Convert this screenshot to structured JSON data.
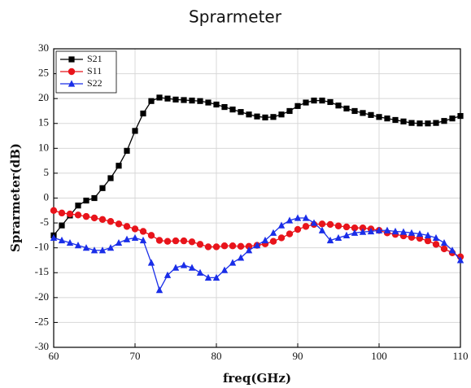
{
  "chart_data": {
    "type": "line",
    "title": "Sprarmeter",
    "x_label": "freq(GHz)",
    "y_label": "Sprarmeter(dB)",
    "x": [
      60,
      61,
      62,
      63,
      64,
      65,
      66,
      67,
      68,
      69,
      70,
      71,
      72,
      73,
      74,
      75,
      76,
      77,
      78,
      79,
      80,
      81,
      82,
      83,
      84,
      85,
      86,
      87,
      88,
      89,
      90,
      91,
      92,
      93,
      94,
      95,
      96,
      97,
      98,
      99,
      100,
      101,
      102,
      103,
      104,
      105,
      106,
      107,
      108,
      109,
      110
    ],
    "series": [
      {
        "name": "S21",
        "color": "#000000",
        "marker": "square",
        "values": [
          -7.5,
          -5.5,
          -3.5,
          -1.5,
          -0.5,
          0,
          2,
          4,
          6.5,
          9.5,
          13.5,
          17,
          19.5,
          20.2,
          20,
          19.8,
          19.7,
          19.6,
          19.5,
          19.2,
          18.8,
          18.3,
          17.8,
          17.3,
          16.8,
          16.4,
          16.2,
          16.3,
          16.8,
          17.5,
          18.5,
          19.2,
          19.6,
          19.6,
          19.3,
          18.6,
          18,
          17.5,
          17.1,
          16.7,
          16.3,
          16,
          15.7,
          15.4,
          15.1,
          15,
          15,
          15.1,
          15.5,
          16,
          16.5
        ]
      },
      {
        "name": "S11",
        "color": "#e8141b",
        "marker": "circle",
        "values": [
          -2.5,
          -3,
          -3.2,
          -3.4,
          -3.7,
          -4,
          -4.3,
          -4.7,
          -5.2,
          -5.7,
          -6.2,
          -6.7,
          -7.5,
          -8.5,
          -8.7,
          -8.6,
          -8.6,
          -8.8,
          -9.3,
          -9.8,
          -9.8,
          -9.6,
          -9.6,
          -9.7,
          -9.7,
          -9.5,
          -9.2,
          -8.7,
          -8,
          -7.2,
          -6.3,
          -5.7,
          -5.3,
          -5.2,
          -5.3,
          -5.6,
          -5.8,
          -6,
          -6,
          -6.2,
          -6.5,
          -7,
          -7.3,
          -7.6,
          -7.9,
          -8.1,
          -8.6,
          -9.3,
          -10.2,
          -11,
          -11.8
        ]
      },
      {
        "name": "S22",
        "color": "#1a2ee8",
        "marker": "triangle",
        "values": [
          -8,
          -8.5,
          -9,
          -9.5,
          -10,
          -10.5,
          -10.5,
          -10,
          -9,
          -8.3,
          -8,
          -8.5,
          -13,
          -18.5,
          -15.5,
          -14,
          -13.5,
          -14,
          -15,
          -16,
          -16,
          -14.5,
          -13,
          -12,
          -10.5,
          -9.5,
          -8.5,
          -7,
          -5.5,
          -4.5,
          -4,
          -4,
          -5,
          -6.5,
          -8.5,
          -8,
          -7.5,
          -7,
          -6.8,
          -6.7,
          -6.5,
          -6.5,
          -6.7,
          -6.8,
          -7,
          -7.2,
          -7.5,
          -8,
          -9,
          -10.5,
          -12.5
        ]
      }
    ],
    "xlim": [
      60,
      110
    ],
    "ylim": [
      -30,
      30
    ],
    "xticks": [
      60,
      70,
      80,
      90,
      100,
      110
    ],
    "yticks": [
      -30,
      -25,
      -20,
      -15,
      -10,
      -5,
      0,
      5,
      10,
      15,
      20,
      25,
      30
    ],
    "grid": true,
    "legend": "upper left"
  }
}
